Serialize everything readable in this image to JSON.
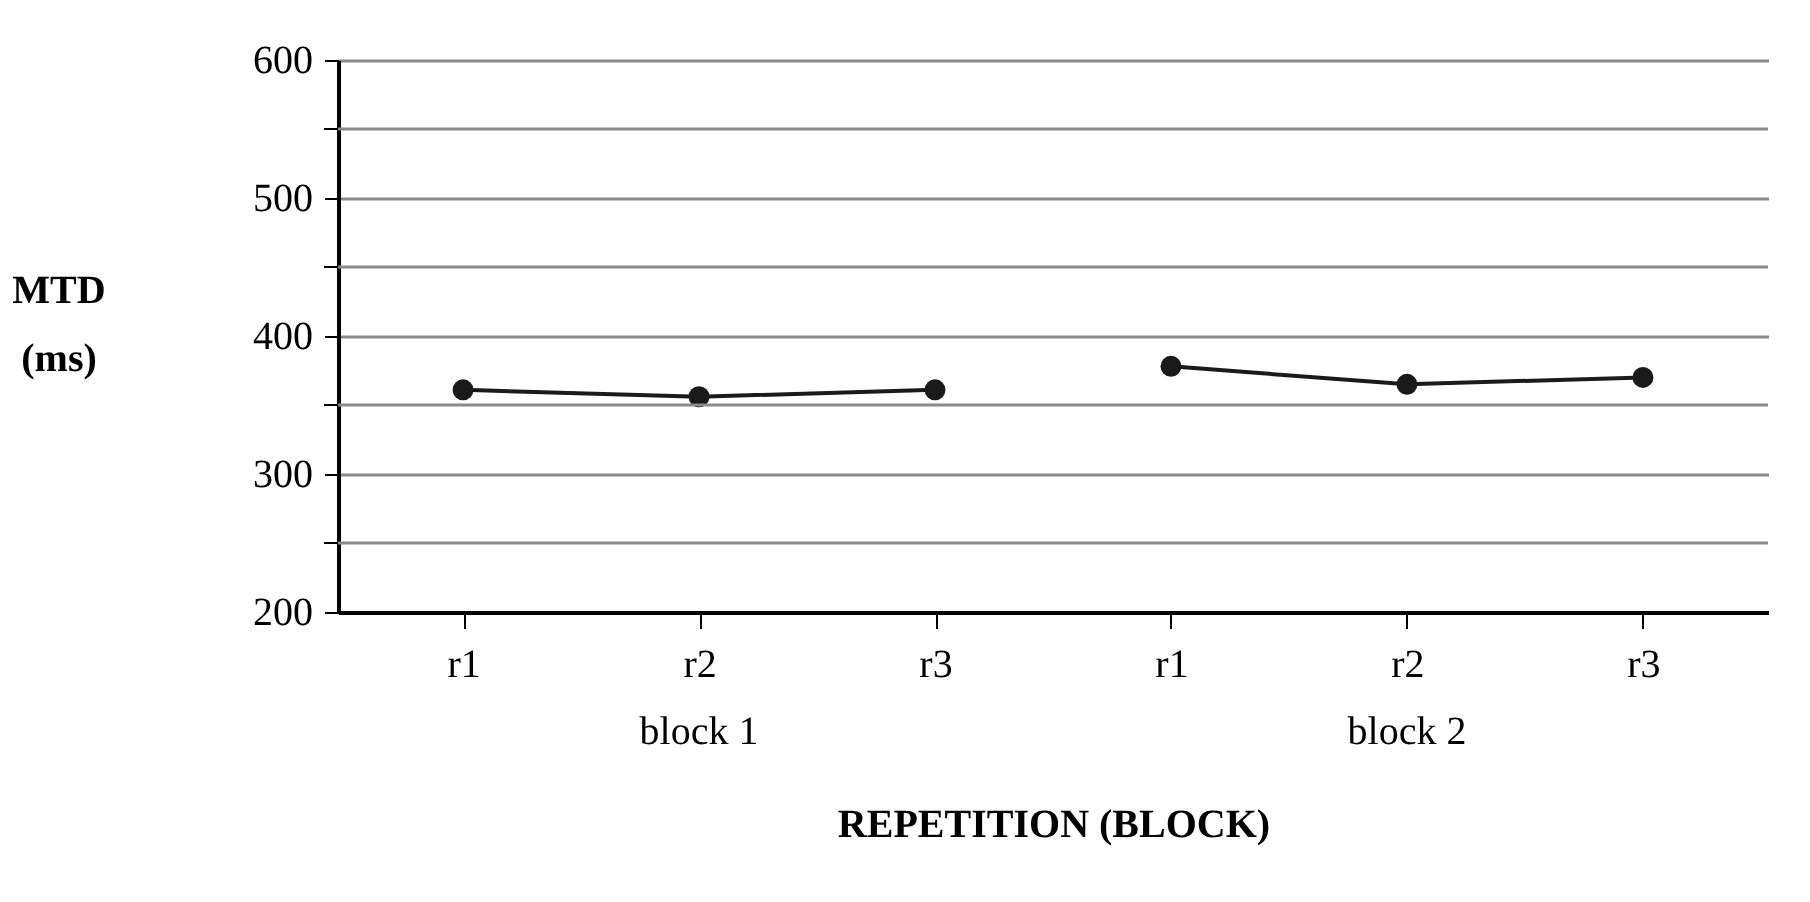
{
  "chart_data": {
    "type": "line",
    "xlabel": "REPETITION (BLOCK)",
    "ylabel": "MTD (ms)",
    "categories": [
      "r1",
      "r2",
      "r3",
      "r1",
      "r2",
      "r3"
    ],
    "series": [
      {
        "color": "#1a1a1a",
        "values": [
          361,
          356,
          361,
          null,
          null,
          null
        ]
      },
      {
        "color": "#1a1a1a",
        "values": [
          null,
          null,
          null,
          378,
          365,
          370
        ]
      }
    ],
    "ylim": [
      200,
      600
    ],
    "yticks": [
      200,
      {
        "value": 250,
        "label": null
      },
      300,
      {
        "value": 350,
        "label": null
      },
      400,
      {
        "value": 450,
        "label": null
      },
      500,
      {
        "value": 550,
        "label": null
      },
      600
    ],
    "grid": "y",
    "marker": "circle",
    "line_style": "solid",
    "annotations": [
      "block 1",
      "block 2"
    ]
  }
}
